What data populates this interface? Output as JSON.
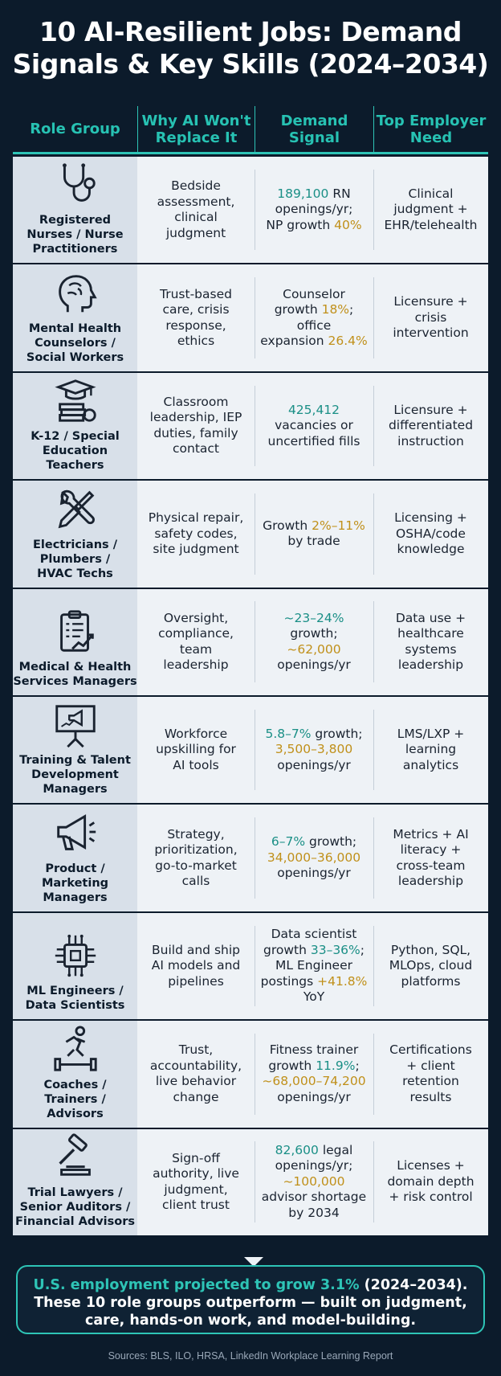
{
  "title_line1": "10 AI-Resilient Jobs: Demand",
  "title_line2": "Signals & Key Skills (2024–2034)",
  "headers": {
    "role": "Role Group",
    "why": "Why AI Won't\nReplace It",
    "demand": "Demand\nSignal",
    "need": "Top Employer\nNeed"
  },
  "rows": [
    {
      "icon": "stethoscope-icon",
      "role": "Registered\nNurses / Nurse\nPractitioners",
      "why": "Bedside\nassessment,\nclinical\njudgment",
      "demand": [
        {
          "t": "189,100",
          "c": "teal"
        },
        {
          "t": " RN\nopenings/yr;\nNP growth "
        },
        {
          "t": "40%",
          "c": "gold"
        }
      ],
      "need": "Clinical\njudgment +\nEHR/telehealth"
    },
    {
      "icon": "brain-head-icon",
      "role": "Mental Health\nCounselors /\nSocial Workers",
      "why": "Trust-based\ncare, crisis\nresponse,\nethics",
      "demand": [
        {
          "t": "Counselor\ngrowth "
        },
        {
          "t": "18%",
          "c": "gold"
        },
        {
          "t": ";\noffice\nexpansion "
        },
        {
          "t": "26.4%",
          "c": "gold"
        }
      ],
      "need": "Licensure +\ncrisis\nintervention"
    },
    {
      "icon": "graduation-books-icon",
      "role": "K-12 / Special\nEducation\nTeachers",
      "why": "Classroom\nleadership, IEP\nduties, family\ncontact",
      "demand": [
        {
          "t": "425,412",
          "c": "teal"
        },
        {
          "t": "\nvacancies or\nuncertified fills"
        }
      ],
      "need": "Licensure +\ndifferentiated\ninstruction"
    },
    {
      "icon": "wrench-screwdriver-icon",
      "role": "Electricians /\nPlumbers /\nHVAC Techs",
      "why": "Physical repair,\nsafety codes,\nsite judgment",
      "demand": [
        {
          "t": "Growth "
        },
        {
          "t": "2%–11%",
          "c": "gold"
        },
        {
          "t": "\nby trade"
        }
      ],
      "need": "Licensing +\nOSHA/code\nknowledge"
    },
    {
      "icon": "clipboard-chart-icon",
      "role": "Medical & Health\nServices Managers",
      "why": "Oversight,\ncompliance,\nteam\nleadership",
      "demand": [
        {
          "t": "~23–24%",
          "c": "teal"
        },
        {
          "t": "\ngrowth;\n"
        },
        {
          "t": "~62,000",
          "c": "gold"
        },
        {
          "t": "\nopenings/yr"
        }
      ],
      "need": "Data use +\nhealthcare\nsystems\nleadership"
    },
    {
      "icon": "presentation-megaphone-icon",
      "role": "Training & Talent\nDevelopment\nManagers",
      "why": "Workforce\nupskilling for\nAI tools",
      "demand": [
        {
          "t": "5.8–7%",
          "c": "teal"
        },
        {
          "t": " growth;\n"
        },
        {
          "t": "3,500–3,800",
          "c": "gold"
        },
        {
          "t": "\nopenings/yr"
        }
      ],
      "need": "LMS/LXP +\nlearning\nanalytics"
    },
    {
      "icon": "megaphone-icon",
      "role": "Product /\nMarketing\nManagers",
      "why": "Strategy,\nprioritization,\ngo-to-market\ncalls",
      "demand": [
        {
          "t": "6–7%",
          "c": "teal"
        },
        {
          "t": " growth;\n"
        },
        {
          "t": "34,000–36,000",
          "c": "gold"
        },
        {
          "t": "\nopenings/yr"
        }
      ],
      "need": "Metrics + AI\nliteracy +\ncross-team\nleadership"
    },
    {
      "icon": "chip-icon",
      "role": "ML Engineers /\nData Scientists",
      "why": "Build and ship\nAI models and\npipelines",
      "demand": [
        {
          "t": "Data scientist\ngrowth "
        },
        {
          "t": "33–36%",
          "c": "teal"
        },
        {
          "t": ";\nML Engineer\npostings "
        },
        {
          "t": "+41.8%",
          "c": "gold"
        },
        {
          "t": "\nYoY"
        }
      ],
      "need": "Python, SQL,\nMLOps, cloud\nplatforms"
    },
    {
      "icon": "runner-dumbbell-icon",
      "role": "Coaches /\nTrainers /\nAdvisors",
      "why": "Trust,\naccountability,\nlive behavior\nchange",
      "demand": [
        {
          "t": "Fitness trainer\ngrowth "
        },
        {
          "t": "11.9%",
          "c": "teal"
        },
        {
          "t": ";\n"
        },
        {
          "t": "~68,000–74,200",
          "c": "gold"
        },
        {
          "t": "\nopenings/yr"
        }
      ],
      "need": "Certifications\n+ client\nretention\nresults"
    },
    {
      "icon": "gavel-icon",
      "role": "Trial Lawyers /\nSenior Auditors /\nFinancial Advisors",
      "why": "Sign-off\nauthority, live\njudgment,\nclient trust",
      "demand": [
        {
          "t": "82,600",
          "c": "teal"
        },
        {
          "t": " legal\nopenings/yr;\n"
        },
        {
          "t": "~100,000",
          "c": "gold"
        },
        {
          "t": "\nadvisor shortage\nby 2034"
        }
      ],
      "need": "Licenses +\ndomain depth\n+ risk control"
    }
  ],
  "callout": {
    "lead": "U.S. employment projected to grow 3.1%",
    "rest": " (2024–2034).\nThese  10 role groups outperform — built on judgment,\ncare, hands-on work, and model-building."
  },
  "sources": "Sources: BLS, ILO, HRSA, LinkedIn Workplace Learning Report",
  "colors": {
    "background": "#0c1b2b",
    "teal": "#2ec4b6",
    "gold": "#c0901a",
    "row_bg": "#eef2f6",
    "role_bg": "#d8e0e9"
  }
}
